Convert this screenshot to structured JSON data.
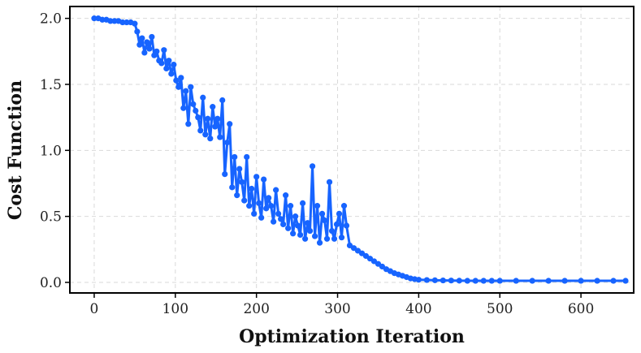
{
  "chart_data": {
    "type": "line",
    "xlabel": "Optimization Iteration",
    "ylabel": "Cost Function",
    "xlim": [
      -30,
      665
    ],
    "ylim": [
      -0.08,
      2.09
    ],
    "xticks": [
      0,
      100,
      200,
      300,
      400,
      500,
      600
    ],
    "yticks": [
      0.0,
      0.5,
      1.0,
      1.5,
      2.0
    ],
    "xtick_labels": [
      "0",
      "100",
      "200",
      "300",
      "400",
      "500",
      "600"
    ],
    "ytick_labels": [
      "0.0",
      "0.5",
      "1.0",
      "1.5",
      "2.0"
    ],
    "grid": true,
    "marker": "circle",
    "series": [
      {
        "color": "#1764ff",
        "x": [
          0,
          5,
          10,
          15,
          20,
          25,
          30,
          35,
          40,
          45,
          50,
          53,
          56,
          59,
          62,
          65,
          68,
          71,
          74,
          77,
          80,
          83,
          86,
          89,
          92,
          95,
          98,
          101,
          104,
          107,
          110,
          113,
          116,
          119,
          122,
          125,
          128,
          131,
          134,
          137,
          140,
          143,
          146,
          149,
          152,
          155,
          158,
          161,
          164,
          167,
          170,
          173,
          176,
          179,
          182,
          185,
          188,
          191,
          194,
          197,
          200,
          203,
          206,
          209,
          212,
          215,
          218,
          221,
          224,
          227,
          230,
          233,
          236,
          239,
          242,
          245,
          248,
          251,
          254,
          257,
          260,
          263,
          266,
          269,
          272,
          275,
          278,
          281,
          284,
          287,
          290,
          293,
          296,
          299,
          302,
          305,
          308,
          311,
          315,
          320,
          325,
          330,
          335,
          340,
          345,
          350,
          355,
          360,
          365,
          370,
          375,
          380,
          385,
          390,
          395,
          400,
          410,
          420,
          430,
          440,
          450,
          460,
          470,
          480,
          490,
          500,
          520,
          540,
          560,
          580,
          600,
          620,
          640,
          655
        ],
        "y": [
          2.0,
          2.0,
          1.99,
          1.99,
          1.98,
          1.98,
          1.98,
          1.97,
          1.97,
          1.97,
          1.96,
          1.9,
          1.8,
          1.85,
          1.74,
          1.82,
          1.77,
          1.86,
          1.72,
          1.75,
          1.68,
          1.66,
          1.76,
          1.62,
          1.68,
          1.58,
          1.65,
          1.53,
          1.48,
          1.55,
          1.32,
          1.45,
          1.2,
          1.48,
          1.35,
          1.3,
          1.25,
          1.15,
          1.4,
          1.12,
          1.24,
          1.09,
          1.33,
          1.18,
          1.24,
          1.1,
          1.38,
          0.82,
          1.06,
          1.2,
          0.72,
          0.95,
          0.66,
          0.86,
          0.76,
          0.62,
          0.95,
          0.58,
          0.71,
          0.52,
          0.8,
          0.6,
          0.49,
          0.78,
          0.56,
          0.64,
          0.58,
          0.46,
          0.7,
          0.52,
          0.48,
          0.44,
          0.66,
          0.41,
          0.58,
          0.37,
          0.5,
          0.43,
          0.36,
          0.6,
          0.33,
          0.45,
          0.39,
          0.88,
          0.35,
          0.58,
          0.3,
          0.52,
          0.47,
          0.33,
          0.76,
          0.39,
          0.33,
          0.44,
          0.52,
          0.34,
          0.58,
          0.43,
          0.28,
          0.26,
          0.24,
          0.22,
          0.2,
          0.18,
          0.16,
          0.14,
          0.12,
          0.1,
          0.085,
          0.07,
          0.06,
          0.05,
          0.04,
          0.03,
          0.025,
          0.02,
          0.018,
          0.016,
          0.015,
          0.014,
          0.013,
          0.012,
          0.012,
          0.012,
          0.012,
          0.012,
          0.012,
          0.012,
          0.012,
          0.012,
          0.012,
          0.012,
          0.012,
          0.012
        ]
      }
    ]
  }
}
